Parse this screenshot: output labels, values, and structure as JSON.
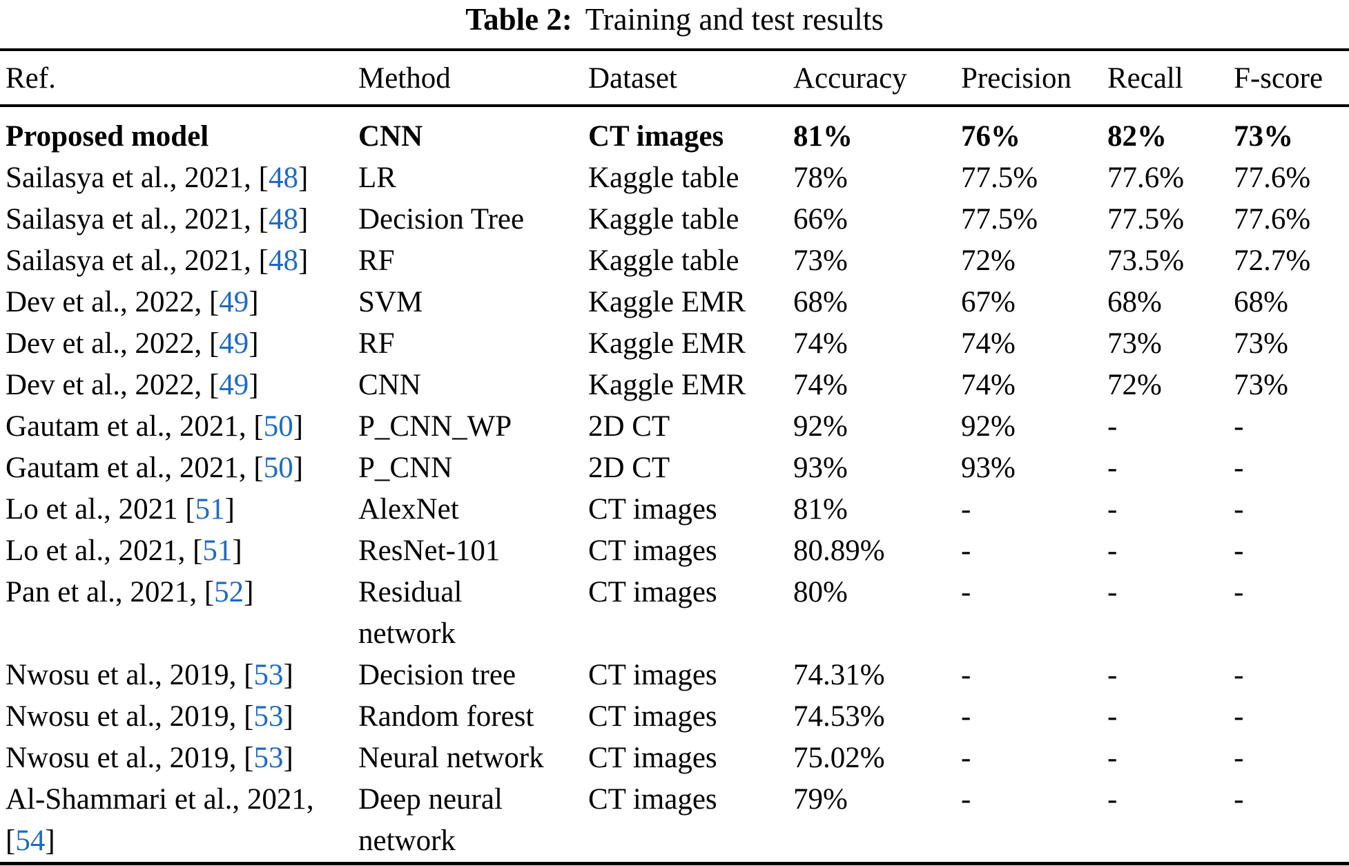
{
  "caption": {
    "label": "Table 2:",
    "text": "Training and test results"
  },
  "colors": {
    "text": "#000000",
    "citation_link_blue": "#1b6ac9",
    "rule": "#000000",
    "background": "#ffffff"
  },
  "table": {
    "columns": [
      "Ref.",
      "Method",
      "Dataset",
      "Accuracy",
      "Precision",
      "Recall",
      "F-score"
    ],
    "rows": [
      {
        "ref": {
          "pre": "Proposed model",
          "cite": "",
          "post": ""
        },
        "method": "CNN",
        "dataset": "CT images",
        "accuracy": "81%",
        "precision": "76%",
        "recall": "82%",
        "fscore": "73%",
        "bold": true
      },
      {
        "ref": {
          "pre": "Sailasya et al., 2021, [",
          "cite": "48",
          "post": "]"
        },
        "method": "LR",
        "dataset": "Kaggle table",
        "accuracy": "78%",
        "precision": "77.5%",
        "recall": "77.6%",
        "fscore": "77.6%",
        "bold": false
      },
      {
        "ref": {
          "pre": "Sailasya et al., 2021, [",
          "cite": "48",
          "post": "]"
        },
        "method": "Decision Tree",
        "dataset": "Kaggle table",
        "accuracy": "66%",
        "precision": "77.5%",
        "recall": "77.5%",
        "fscore": "77.6%",
        "bold": false
      },
      {
        "ref": {
          "pre": "Sailasya et al., 2021, [",
          "cite": "48",
          "post": "]"
        },
        "method": "RF",
        "dataset": "Kaggle table",
        "accuracy": "73%",
        "precision": "72%",
        "recall": "73.5%",
        "fscore": "72.7%",
        "bold": false
      },
      {
        "ref": {
          "pre": "Dev et al., 2022, [",
          "cite": "49",
          "post": "]"
        },
        "method": "SVM",
        "dataset": "Kaggle EMR",
        "accuracy": "68%",
        "precision": "67%",
        "recall": "68%",
        "fscore": "68%",
        "bold": false
      },
      {
        "ref": {
          "pre": "Dev et al., 2022, [",
          "cite": "49",
          "post": "]"
        },
        "method": "RF",
        "dataset": "Kaggle EMR",
        "accuracy": "74%",
        "precision": "74%",
        "recall": "73%",
        "fscore": "73%",
        "bold": false
      },
      {
        "ref": {
          "pre": "Dev et al., 2022, [",
          "cite": "49",
          "post": "]"
        },
        "method": "CNN",
        "dataset": "Kaggle EMR",
        "accuracy": "74%",
        "precision": "74%",
        "recall": "72%",
        "fscore": "73%",
        "bold": false
      },
      {
        "ref": {
          "pre": "Gautam et al., 2021, [",
          "cite": "50",
          "post": "]"
        },
        "method": "P_CNN_WP",
        "dataset": "2D CT",
        "accuracy": "92%",
        "precision": "92%",
        "recall": "-",
        "fscore": "-",
        "bold": false
      },
      {
        "ref": {
          "pre": "Gautam et al., 2021, [",
          "cite": "50",
          "post": "]"
        },
        "method": "P_CNN",
        "dataset": "2D CT",
        "accuracy": "93%",
        "precision": "93%",
        "recall": "-",
        "fscore": "-",
        "bold": false
      },
      {
        "ref": {
          "pre": "Lo et al., 2021 [",
          "cite": "51",
          "post": "]"
        },
        "method": "AlexNet",
        "dataset": "CT images",
        "accuracy": "81%",
        "precision": "-",
        "recall": "-",
        "fscore": "-",
        "bold": false
      },
      {
        "ref": {
          "pre": "Lo et al., 2021, [",
          "cite": "51",
          "post": "]"
        },
        "method": "ResNet-101",
        "dataset": "CT images",
        "accuracy": "80.89%",
        "precision": "-",
        "recall": "-",
        "fscore": "-",
        "bold": false
      },
      {
        "ref": {
          "pre": "Pan et al., 2021, [",
          "cite": "52",
          "post": "]"
        },
        "method": "Residual network",
        "dataset": "CT images",
        "accuracy": "80%",
        "precision": "-",
        "recall": "-",
        "fscore": "-",
        "bold": false
      },
      {
        "ref": {
          "pre": "Nwosu et al., 2019, [",
          "cite": "53",
          "post": "]"
        },
        "method": "Decision tree",
        "dataset": "CT images",
        "accuracy": "74.31%",
        "precision": "-",
        "recall": "-",
        "fscore": "-",
        "bold": false
      },
      {
        "ref": {
          "pre": "Nwosu et al., 2019, [",
          "cite": "53",
          "post": "]"
        },
        "method": "Random forest",
        "dataset": "CT images",
        "accuracy": "74.53%",
        "precision": "-",
        "recall": "-",
        "fscore": "-",
        "bold": false
      },
      {
        "ref": {
          "pre": "Nwosu et al., 2019, [",
          "cite": "53",
          "post": "]"
        },
        "method": "Neural network",
        "dataset": "CT images",
        "accuracy": "75.02%",
        "precision": "-",
        "recall": "-",
        "fscore": "-",
        "bold": false
      },
      {
        "ref": {
          "pre": "Al-Shammari et al., 2021, [",
          "cite": "54",
          "post": "]"
        },
        "method": "Deep neural network",
        "dataset": "CT images",
        "accuracy": "79%",
        "precision": "-",
        "recall": "-",
        "fscore": "-",
        "bold": false
      }
    ]
  }
}
